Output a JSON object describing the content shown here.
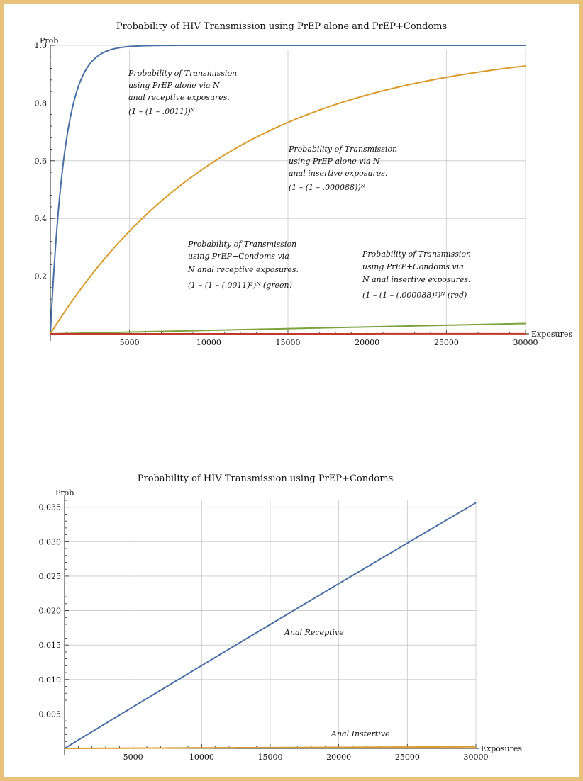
{
  "chart_data": [
    {
      "type": "line",
      "title": "Probability of HIV Transmission using PrEP alone and PrEP+Condoms",
      "xlabel": "Exposures",
      "ylabel": "Prob",
      "xlim": [
        0,
        30000
      ],
      "ylim": [
        0,
        1.0
      ],
      "x_ticks": [
        5000,
        10000,
        15000,
        20000,
        25000,
        30000
      ],
      "x_tick_labels": [
        "5000",
        "10000",
        "15000",
        "20000",
        "25000",
        "30000"
      ],
      "y_ticks": [
        0.2,
        0.4,
        0.6,
        0.8,
        1.0
      ],
      "y_tick_labels": [
        "0.2",
        "0.4",
        "0.6",
        "0.8",
        "1.0"
      ],
      "grid": true,
      "series": [
        {
          "key": "prep-receptive",
          "color": "#4a6fa5",
          "formula": "1-(1-p)^N",
          "p": 0.0011,
          "x": [
            0,
            500,
            1000,
            2000,
            3000,
            4000,
            5000,
            10000,
            20000,
            30000
          ],
          "y": [
            0,
            0.423,
            0.667,
            0.889,
            0.963,
            0.988,
            0.996,
            1.0,
            1.0,
            1.0
          ]
        },
        {
          "key": "prep-insertive",
          "color": "#d89a2a",
          "formula": "1-(1-p)^N",
          "p": 8.8e-05,
          "x": [
            0,
            5000,
            10000,
            15000,
            20000,
            25000,
            30000
          ],
          "y": [
            0,
            0.356,
            0.585,
            0.733,
            0.828,
            0.889,
            0.929
          ]
        },
        {
          "key": "prep-condoms-receptive",
          "color": "#7aa33c",
          "formula": "1-(1-p^2)^N",
          "p": 0.0011,
          "x": [
            0,
            10000,
            20000,
            30000
          ],
          "y": [
            0,
            0.012,
            0.024,
            0.036
          ]
        },
        {
          "key": "prep-condoms-insertive",
          "color": "#c0392b",
          "formula": "1-(1-p^2)^N",
          "p": 8.8e-05,
          "x": [
            0,
            30000
          ],
          "y": [
            0,
            0.0002
          ]
        }
      ],
      "annotations": [
        {
          "key": "a1",
          "lines": [
            "Probability of Transmission",
            "using PrEP alone via  N",
            "anal receptive exposures."
          ],
          "formula": "(1 – (1 – .0011))ᴺ"
        },
        {
          "key": "a2",
          "lines": [
            "Probability of Transmission",
            "using PrEP alone via  N",
            "anal insertive exposures."
          ],
          "formula": "(1 – (1 – .000088))ᴺ"
        },
        {
          "key": "a3",
          "lines": [
            "Probability of Transmission",
            "using PrEP+Condoms via",
            "N anal receptive exposures."
          ],
          "formula": "(1 – (1 – (.0011)²)ᴺ (green)"
        },
        {
          "key": "a4",
          "lines": [
            "Probability of Transmission",
            "using PrEP+Condoms via",
            "N anal insertive exposures."
          ],
          "formula": "(1 – (1 – (.000088)²)ᴺ (red)"
        }
      ]
    },
    {
      "type": "line",
      "title": "Probability of HIV Transmission using PrEP+Condoms",
      "xlabel": "Exposures",
      "ylabel": "Prob",
      "xlim": [
        0,
        30000
      ],
      "ylim": [
        0,
        0.036
      ],
      "x_ticks": [
        5000,
        10000,
        15000,
        20000,
        25000,
        30000
      ],
      "x_tick_labels": [
        "5000",
        "10000",
        "15000",
        "20000",
        "25000",
        "30000"
      ],
      "y_ticks": [
        0.005,
        0.01,
        0.015,
        0.02,
        0.025,
        0.03,
        0.035
      ],
      "y_tick_labels": [
        "0.005",
        "0.010",
        "0.015",
        "0.020",
        "0.025",
        "0.030",
        "0.035"
      ],
      "grid": true,
      "series": [
        {
          "key": "anal-receptive",
          "color": "#4a6fa5",
          "formula": "1-(1-p^2)^N",
          "p": 0.0011,
          "x": [
            0,
            10000,
            20000,
            30000
          ],
          "y": [
            0,
            0.012,
            0.0239,
            0.0357
          ]
        },
        {
          "key": "anal-insertive",
          "color": "#d89a2a",
          "formula": "1-(1-p^2)^N",
          "p": 8.8e-05,
          "x": [
            0,
            30000
          ],
          "y": [
            0,
            0.0002
          ]
        }
      ],
      "annotations": [
        {
          "key": "b1",
          "lines": [
            "Anal Receptive"
          ],
          "formula": ""
        },
        {
          "key": "b2",
          "lines": [
            "Anal Instertive"
          ],
          "formula": ""
        }
      ]
    }
  ]
}
